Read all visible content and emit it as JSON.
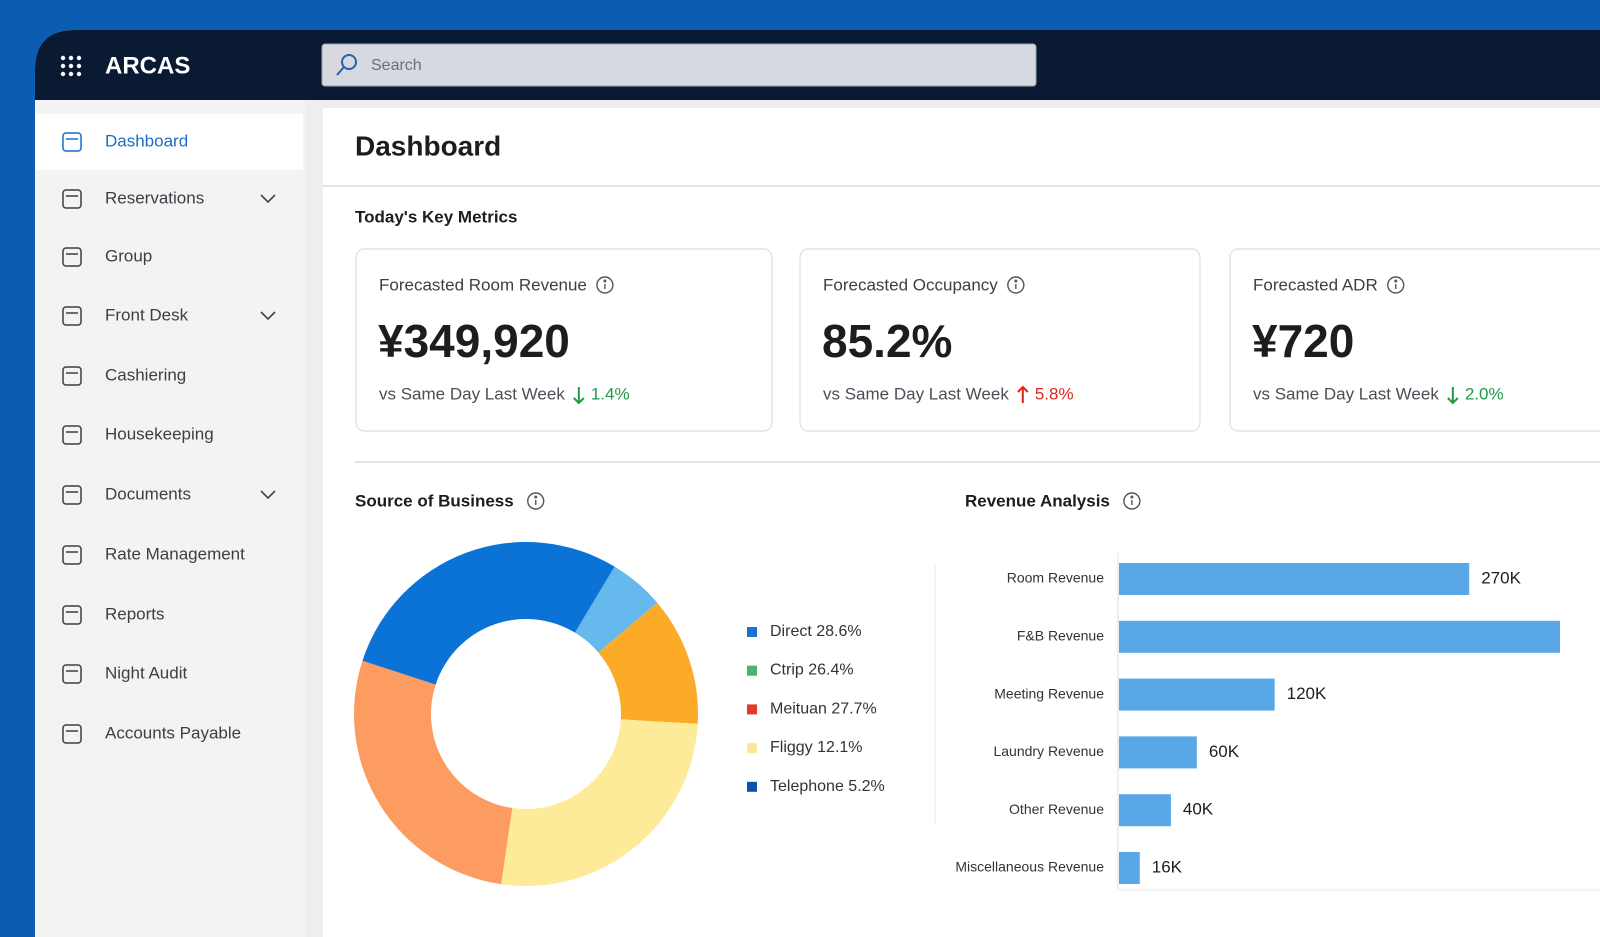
{
  "app": {
    "name": "ARCAS",
    "search_placeholder": "Search"
  },
  "nav": [
    {
      "label": "Dashboard",
      "expandable": false,
      "active": true
    },
    {
      "label": "Reservations",
      "expandable": true,
      "active": false
    },
    {
      "label": "Group",
      "expandable": false,
      "active": false
    },
    {
      "label": "Front Desk",
      "expandable": true,
      "active": false
    },
    {
      "label": "Cashiering",
      "expandable": false,
      "active": false
    },
    {
      "label": "Housekeeping",
      "expandable": false,
      "active": false
    },
    {
      "label": "Documents",
      "expandable": true,
      "active": false
    },
    {
      "label": "Rate Management",
      "expandable": false,
      "active": false
    },
    {
      "label": "Reports",
      "expandable": false,
      "active": false
    },
    {
      "label": "Night Audit",
      "expandable": false,
      "active": false
    },
    {
      "label": "Accounts Payable",
      "expandable": false,
      "active": false
    }
  ],
  "page_title": "Dashboard",
  "metrics_title": "Today's Key Metrics",
  "metrics": [
    {
      "label": "Forecasted Room Revenue",
      "value": "¥349,920",
      "comparison": "vs Same Day Last Week",
      "change": "1.4%",
      "direction": "down"
    },
    {
      "label": "Forecasted Occupancy",
      "value": "85.2%",
      "comparison": "vs Same Day Last Week",
      "change": "5.8%",
      "direction": "up"
    },
    {
      "label": "Forecasted ADR",
      "value": "¥720",
      "comparison": "vs Same Day Last Week",
      "change": "2.0%",
      "direction": "down"
    }
  ],
  "chart_data": [
    {
      "type": "donut",
      "title": "Source of Business",
      "categories": [
        "Direct",
        "Ctrip",
        "Meituan",
        "Fliggy",
        "Telephone"
      ],
      "values": [
        28.6,
        26.4,
        27.7,
        12.1,
        5.2
      ],
      "value_labels": [
        "28.6%",
        "26.4%",
        "27.7%",
        "12.1%",
        "5.2%"
      ],
      "colors": [
        "#0b72d6",
        "#fdeb9a",
        "#fd9c60",
        "#fbab28",
        "#66b9ec"
      ],
      "legend_colors": [
        "#1a73d0",
        "#4cb36e",
        "#e23b2e",
        "#fbe69a",
        "#1052a8"
      ]
    },
    {
      "type": "bar",
      "orientation": "horizontal",
      "title": "Revenue Analysis",
      "categories": [
        "Room Revenue",
        "F&B Revenue",
        "Meeting Revenue",
        "Laundry Revenue",
        "Other Revenue",
        "Miscellaneous Revenue"
      ],
      "values": [
        270000,
        340000,
        120000,
        60000,
        40000,
        16000
      ],
      "value_labels": [
        "270K",
        null,
        "120K",
        "60K",
        "40K",
        "16K"
      ],
      "color": "#59a7e6"
    }
  ]
}
